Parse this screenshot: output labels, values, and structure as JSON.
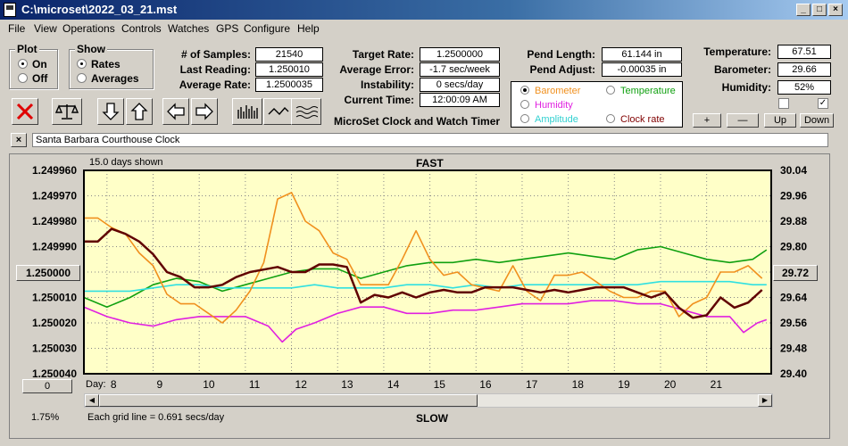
{
  "window": {
    "title": "C:\\microset\\2022_03_21.mst"
  },
  "menu": [
    "File",
    "View",
    "Operations",
    "Controls",
    "Watches",
    "GPS",
    "Configure",
    "Help"
  ],
  "plot_group": {
    "label": "Plot",
    "on": "On",
    "off": "Off",
    "selected": "On"
  },
  "show_group": {
    "label": "Show",
    "rates": "Rates",
    "averages": "Averages",
    "selected": "Rates"
  },
  "stats": {
    "samples_label": "# of Samples:",
    "samples": "21540",
    "last_label": "Last Reading:",
    "last": "1.250010",
    "avg_rate_label": "Average Rate:",
    "avg_rate": "1.2500035",
    "target_label": "Target Rate:",
    "target": "1.2500000",
    "avg_err_label": "Average Error:",
    "avg_err": "-1.7 sec/week",
    "instab_label": "Instability:",
    "instab": "0 secs/day",
    "time_label": "Current Time:",
    "time": "12:00:09 AM",
    "pend_len_label": "Pend Length:",
    "pend_len": "61.144 in",
    "pend_adj_label": "Pend Adjust:",
    "pend_adj": "-0.00035 in",
    "temp_label": "Temperature:",
    "temp": "67.51",
    "baro_label": "Barometer:",
    "baro": "29.66",
    "hum_label": "Humidity:",
    "hum": "52%"
  },
  "app_caption": "MicroSet Clock and Watch Timer",
  "legend": {
    "barometer": "Barometer",
    "temperature": "Temperature",
    "humidity": "Humidity",
    "amplitude": "Amplitude",
    "clock_rate": "Clock rate",
    "selected": "Barometer",
    "colors": {
      "barometer": "#f0901e",
      "temperature": "#10a010",
      "humidity": "#e020e0",
      "amplitude": "#30e0e0",
      "clock_rate": "#600000"
    }
  },
  "right_buttons": {
    "plus": "+",
    "minus": "—",
    "up": "Up",
    "down": "Down"
  },
  "checkboxes": {
    "left": false,
    "right": true
  },
  "clock_name": "Santa Barbara Courthouse Clock",
  "chart_data": {
    "type": "line",
    "top_label": "FAST",
    "bottom_label": "SLOW",
    "days_shown": "15.0 days shown",
    "grid_note": "Each grid line = 0.691 secs/day",
    "x_axis_label": "Day:",
    "x_ticks": [
      8,
      9,
      10,
      11,
      12,
      13,
      14,
      15,
      16,
      17,
      18,
      19,
      20,
      21
    ],
    "xlim": [
      7.0,
      21.9
    ],
    "left_ticks": [
      "1.249960",
      "1.249970",
      "1.249980",
      "1.249990",
      "1.250000",
      "1.250010",
      "1.250020",
      "1.250030",
      "1.250040"
    ],
    "left_ylim": [
      1.25004,
      1.24996
    ],
    "left_center_button": "1.250000",
    "right_ticks": [
      "30.04",
      "29.96",
      "29.88",
      "29.80",
      "29.72",
      "29.64",
      "29.56",
      "29.48",
      "29.40"
    ],
    "right_ylim": [
      29.4,
      30.04
    ],
    "right_center_button": "29.72",
    "zero_button": "0",
    "percent": "1.75%",
    "background": "#ffffc8",
    "series": [
      {
        "name": "Clock rate",
        "color": "#600000",
        "axis": "left",
        "x": [
          7.0,
          7.3,
          7.6,
          7.9,
          8.2,
          8.5,
          8.8,
          9.1,
          9.4,
          9.7,
          10.0,
          10.3,
          10.6,
          10.9,
          11.2,
          11.5,
          11.8,
          12.1,
          12.4,
          12.7,
          13.0,
          13.3,
          13.6,
          13.9,
          14.2,
          14.5,
          14.8,
          15.1,
          15.4,
          15.7,
          16.0,
          16.3,
          16.6,
          16.9,
          17.2,
          17.5,
          17.8,
          18.1,
          18.4,
          18.7,
          19.0,
          19.3,
          19.6,
          19.9,
          20.2,
          20.5,
          20.8,
          21.1,
          21.4,
          21.7
        ],
        "y": [
          1.249988,
          1.249988,
          1.249983,
          1.249985,
          1.249988,
          1.249993,
          1.25,
          1.250002,
          1.250006,
          1.250006,
          1.250005,
          1.250002,
          1.25,
          1.249999,
          1.249998,
          1.25,
          1.25,
          1.249997,
          1.249997,
          1.249998,
          1.250012,
          1.250009,
          1.25001,
          1.250008,
          1.25001,
          1.250008,
          1.250007,
          1.250008,
          1.250008,
          1.250006,
          1.250006,
          1.250006,
          1.250007,
          1.250008,
          1.250007,
          1.250008,
          1.250007,
          1.250006,
          1.250006,
          1.250006,
          1.250008,
          1.25001,
          1.250008,
          1.250014,
          1.250018,
          1.250017,
          1.25001,
          1.250014,
          1.250012,
          1.250007
        ]
      },
      {
        "name": "Barometer",
        "color": "#f0901e",
        "axis": "right",
        "x": [
          7.0,
          7.3,
          7.6,
          7.9,
          8.2,
          8.5,
          8.8,
          9.1,
          9.4,
          9.7,
          10.0,
          10.3,
          10.6,
          10.9,
          11.2,
          11.5,
          11.8,
          12.1,
          12.4,
          12.7,
          13.0,
          13.3,
          13.6,
          13.9,
          14.2,
          14.5,
          14.8,
          15.1,
          15.4,
          15.7,
          16.0,
          16.3,
          16.6,
          16.9,
          17.2,
          17.5,
          17.8,
          18.1,
          18.4,
          18.7,
          19.0,
          19.3,
          19.6,
          19.9,
          20.2,
          20.5,
          20.8,
          21.1,
          21.4,
          21.7
        ],
        "y": [
          29.89,
          29.89,
          29.86,
          29.84,
          29.78,
          29.74,
          29.65,
          29.62,
          29.62,
          29.59,
          29.56,
          29.6,
          29.66,
          29.75,
          29.95,
          29.97,
          29.88,
          29.85,
          29.78,
          29.76,
          29.68,
          29.68,
          29.68,
          29.76,
          29.85,
          29.76,
          29.71,
          29.72,
          29.68,
          29.67,
          29.66,
          29.74,
          29.66,
          29.63,
          29.71,
          29.71,
          29.72,
          29.69,
          29.66,
          29.64,
          29.64,
          29.66,
          29.66,
          29.58,
          29.62,
          29.64,
          29.72,
          29.72,
          29.74,
          29.7
        ]
      },
      {
        "name": "Temperature",
        "color": "#10a010",
        "axis": "right",
        "x": [
          7.0,
          7.5,
          8.0,
          8.5,
          9.0,
          9.5,
          10.0,
          10.5,
          11.0,
          11.5,
          12.0,
          12.5,
          13.0,
          13.5,
          14.0,
          14.5,
          15.0,
          15.5,
          16.0,
          16.5,
          17.0,
          17.5,
          18.0,
          18.5,
          19.0,
          19.5,
          20.0,
          20.5,
          21.0,
          21.5,
          21.8
        ],
        "y": [
          29.64,
          29.61,
          29.64,
          29.68,
          29.7,
          29.69,
          29.66,
          29.68,
          29.7,
          29.72,
          29.73,
          29.73,
          29.7,
          29.72,
          29.74,
          29.75,
          29.75,
          29.76,
          29.75,
          29.76,
          29.77,
          29.78,
          29.77,
          29.76,
          29.79,
          29.8,
          29.78,
          29.76,
          29.75,
          29.76,
          29.79
        ]
      },
      {
        "name": "Amplitude",
        "color": "#30e0e0",
        "axis": "right",
        "x": [
          7.0,
          7.5,
          8.0,
          8.5,
          9.0,
          9.5,
          10.0,
          10.5,
          11.0,
          11.5,
          12.0,
          12.5,
          13.0,
          13.5,
          14.0,
          14.5,
          15.0,
          15.5,
          16.0,
          16.5,
          17.0,
          17.5,
          18.0,
          18.5,
          19.0,
          19.5,
          20.0,
          20.5,
          21.0,
          21.5,
          21.8
        ],
        "y": [
          29.66,
          29.66,
          29.66,
          29.67,
          29.68,
          29.68,
          29.67,
          29.67,
          29.67,
          29.67,
          29.68,
          29.67,
          29.67,
          29.67,
          29.68,
          29.68,
          29.67,
          29.68,
          29.67,
          29.68,
          29.68,
          29.68,
          29.68,
          29.68,
          29.68,
          29.69,
          29.69,
          29.69,
          29.69,
          29.68,
          29.68
        ]
      },
      {
        "name": "Humidity",
        "color": "#e020e0",
        "axis": "right",
        "x": [
          7.0,
          7.5,
          8.0,
          8.5,
          9.0,
          9.5,
          10.0,
          10.5,
          11.0,
          11.3,
          11.6,
          12.0,
          12.5,
          13.0,
          13.5,
          14.0,
          14.5,
          15.0,
          15.5,
          16.0,
          16.5,
          17.0,
          17.5,
          18.0,
          18.5,
          19.0,
          19.5,
          20.0,
          20.5,
          21.0,
          21.3,
          21.6,
          21.8
        ],
        "y": [
          29.61,
          29.58,
          29.56,
          29.55,
          29.57,
          29.58,
          29.58,
          29.58,
          29.55,
          29.5,
          29.54,
          29.56,
          29.59,
          29.61,
          29.61,
          29.59,
          29.59,
          29.6,
          29.6,
          29.61,
          29.62,
          29.62,
          29.62,
          29.63,
          29.63,
          29.62,
          29.62,
          29.6,
          29.58,
          29.58,
          29.53,
          29.56,
          29.57
        ]
      }
    ]
  }
}
